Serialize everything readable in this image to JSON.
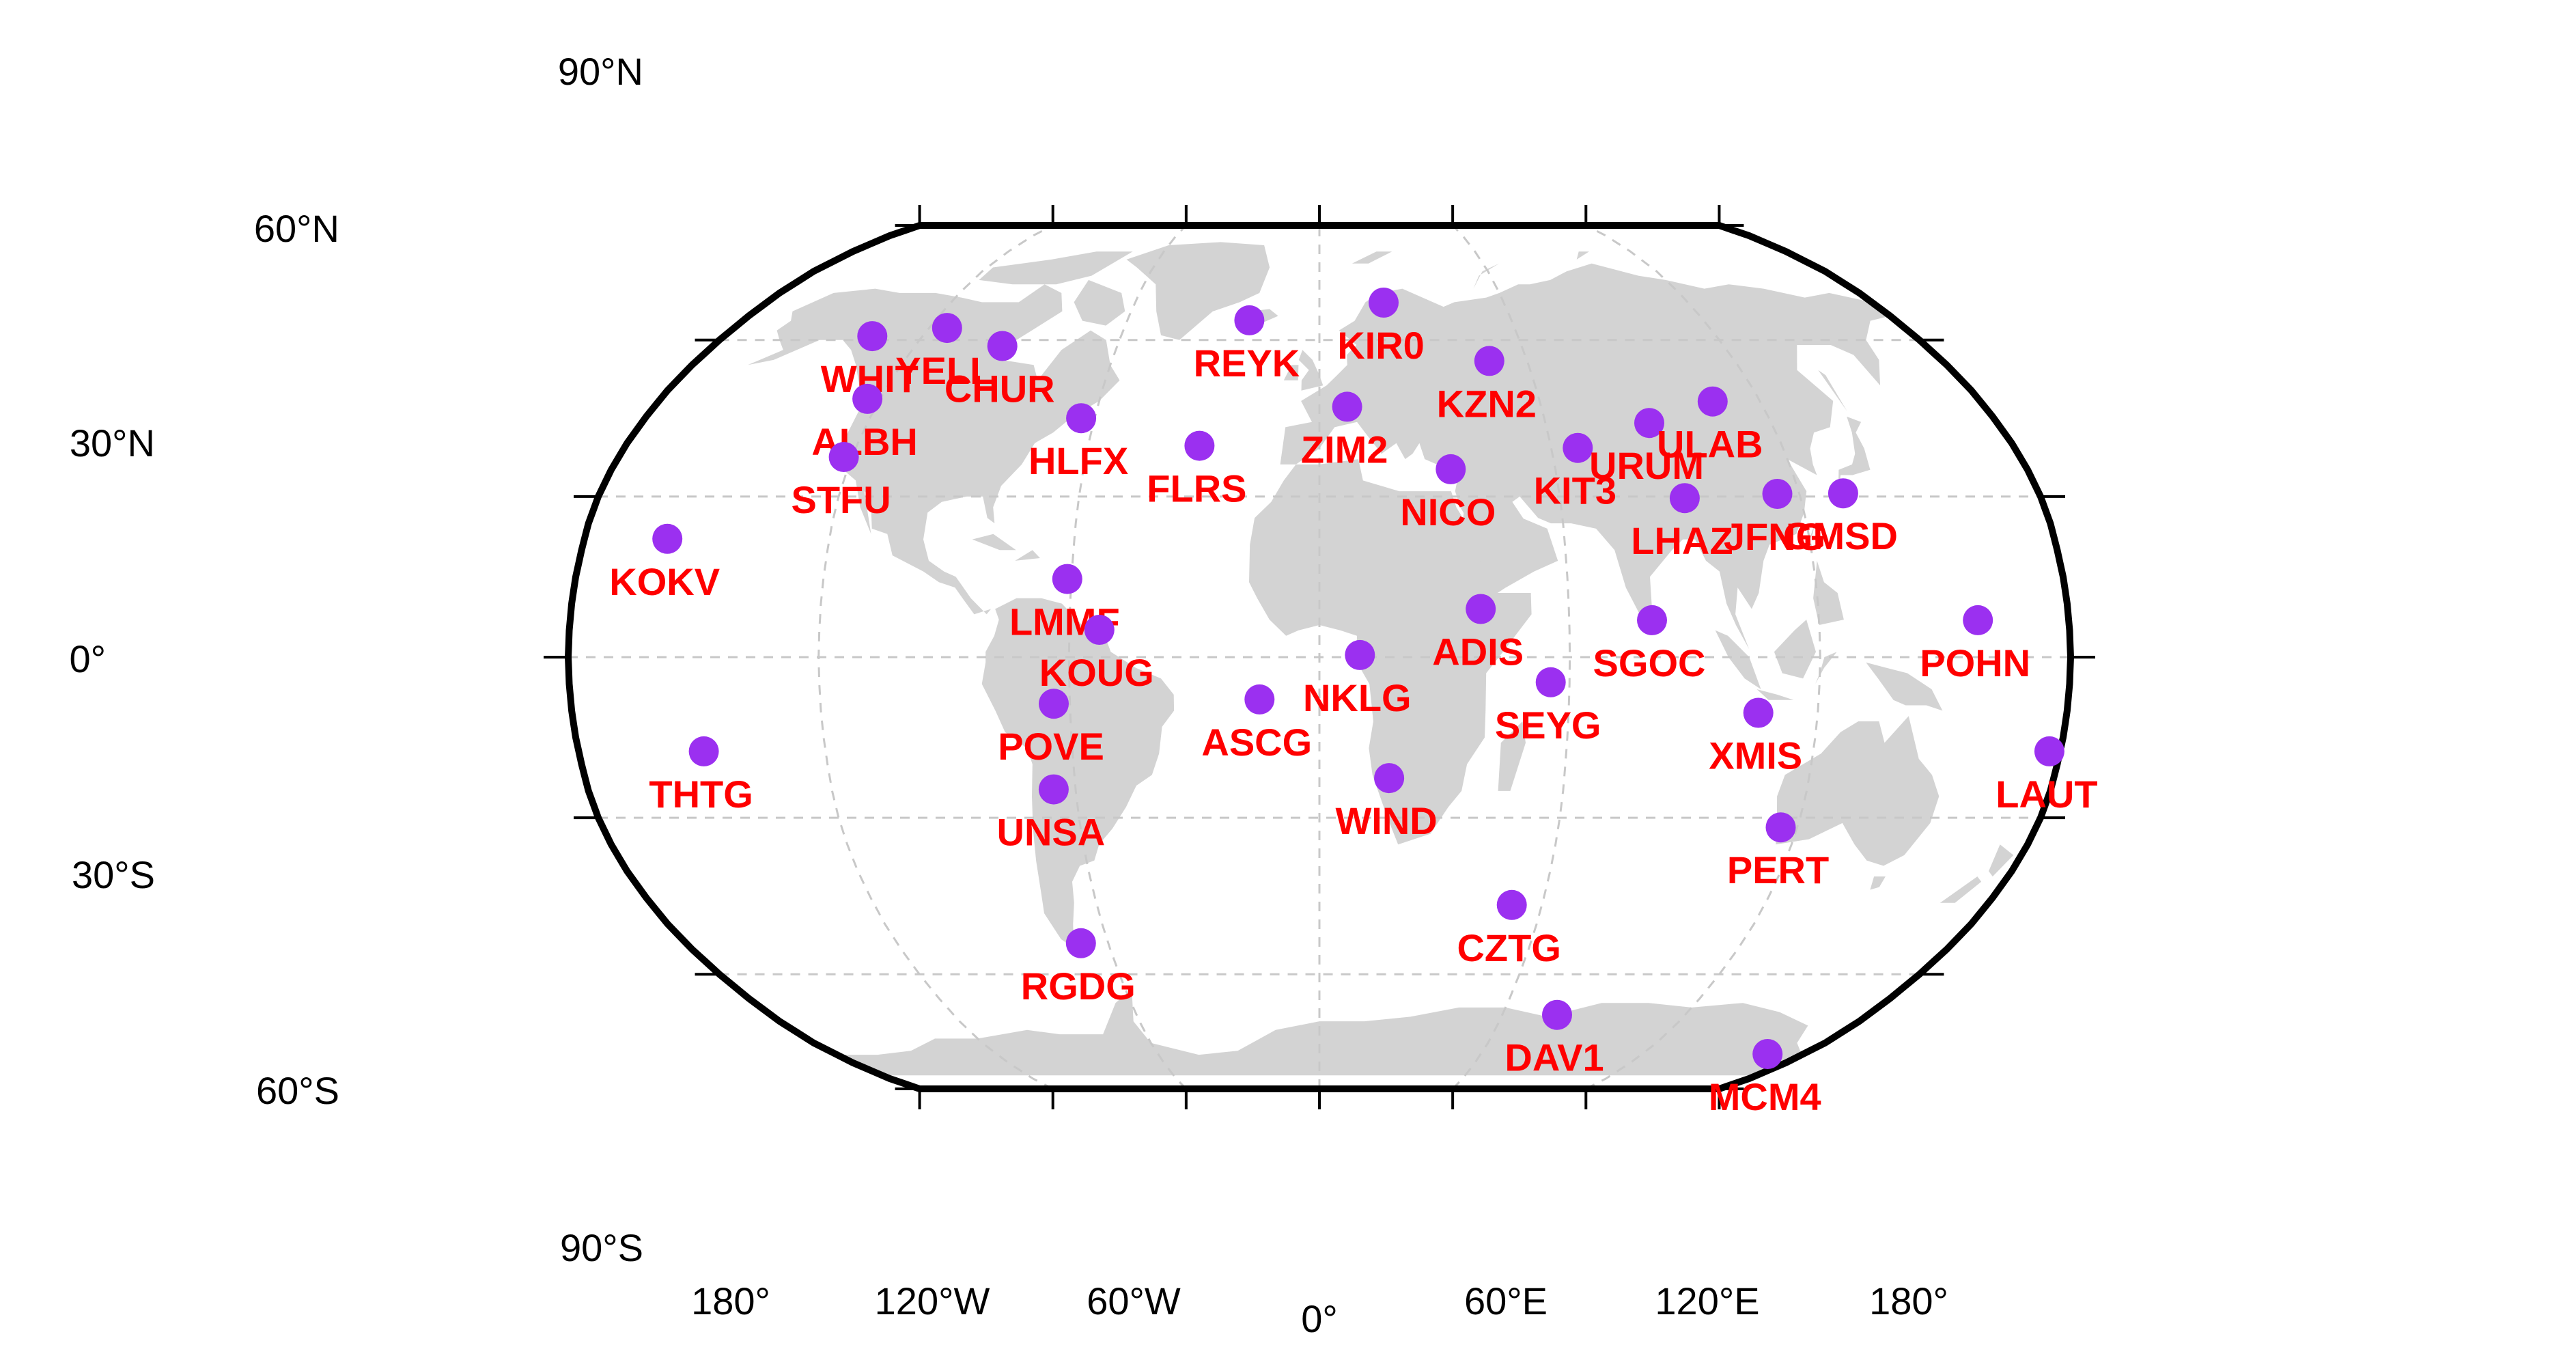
{
  "map": {
    "projection": "Robinson",
    "land_color": "#d3d3d3",
    "marker_color": "#9b30f0",
    "label_color": "#ff0000",
    "grid": true
  },
  "lat_labels": [
    "90°N",
    "60°N",
    "30°N",
    "0°",
    "30°S",
    "60°S",
    "90°S"
  ],
  "lon_labels": [
    "180°",
    "120°W",
    "60°W",
    "0°",
    "60°E",
    "120°E",
    "180°"
  ],
  "stations": [
    {
      "name": "WHIT",
      "lon": -135.2,
      "lat": 60.8
    },
    {
      "name": "YELL",
      "lon": -114.5,
      "lat": 62.5
    },
    {
      "name": "CHUR",
      "lon": -94.1,
      "lat": 58.8
    },
    {
      "name": "REYK",
      "lon": -21.9,
      "lat": 64.1
    },
    {
      "name": "KIR0",
      "lon": 20.9,
      "lat": 67.9
    },
    {
      "name": "ALBH",
      "lon": -123.5,
      "lat": 48.4
    },
    {
      "name": "STFU",
      "lon": -122.2,
      "lat": 37.4
    },
    {
      "name": "HLFX",
      "lon": -63.6,
      "lat": 44.7
    },
    {
      "name": "FLRS",
      "lon": -31.1,
      "lat": 39.5
    },
    {
      "name": "ZIM2",
      "lon": 7.5,
      "lat": 46.9
    },
    {
      "name": "KZN2",
      "lon": 49.1,
      "lat": 55.8
    },
    {
      "name": "NICO",
      "lon": 33.4,
      "lat": 35.1
    },
    {
      "name": "KIT3",
      "lon": 66.9,
      "lat": 39.1
    },
    {
      "name": "URUM",
      "lon": 87.6,
      "lat": 43.8
    },
    {
      "name": "ULAB",
      "lon": 107.1,
      "lat": 47.9
    },
    {
      "name": "LHAZ",
      "lon": 91.1,
      "lat": 29.7
    },
    {
      "name": "JFNG",
      "lon": 114.5,
      "lat": 30.5
    },
    {
      "name": "GMSD",
      "lon": 131.0,
      "lat": 30.6
    },
    {
      "name": "KOKV",
      "lon": -159.7,
      "lat": 22.1
    },
    {
      "name": "LMMF",
      "lon": -61.0,
      "lat": 14.6
    },
    {
      "name": "KOUG",
      "lon": -52.8,
      "lat": 5.1
    },
    {
      "name": "ADIS",
      "lon": 38.8,
      "lat": 9.0
    },
    {
      "name": "SGOC",
      "lon": 79.9,
      "lat": 6.9
    },
    {
      "name": "POHN",
      "lon": 158.2,
      "lat": 6.9
    },
    {
      "name": "NKLG",
      "lon": 9.7,
      "lat": 0.4
    },
    {
      "name": "POVE",
      "lon": -63.9,
      "lat": -8.7
    },
    {
      "name": "ASCG",
      "lon": -14.4,
      "lat": -7.9
    },
    {
      "name": "SEYG",
      "lon": 55.5,
      "lat": -4.7
    },
    {
      "name": "XMIS",
      "lon": 105.7,
      "lat": -10.4
    },
    {
      "name": "THTG",
      "lon": -149.6,
      "lat": -17.6
    },
    {
      "name": "LAUT",
      "lon": 177.4,
      "lat": -17.6
    },
    {
      "name": "WIND",
      "lon": 17.1,
      "lat": -22.6
    },
    {
      "name": "UNSA",
      "lon": -65.4,
      "lat": -24.7
    },
    {
      "name": "PERT",
      "lon": 115.9,
      "lat": -31.8
    },
    {
      "name": "CZTG",
      "lon": 51.9,
      "lat": -46.4
    },
    {
      "name": "RGDG",
      "lon": -67.8,
      "lat": -53.8
    },
    {
      "name": "DAV1",
      "lon": 78.0,
      "lat": -68.6
    },
    {
      "name": "MCM4",
      "lon": 166.7,
      "lat": -77.8
    }
  ]
}
